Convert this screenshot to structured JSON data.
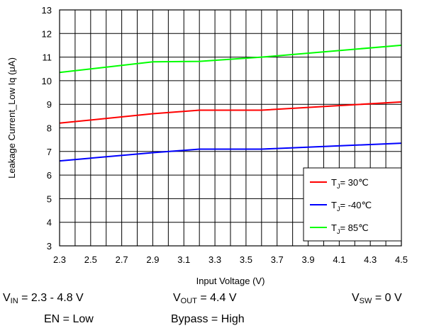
{
  "chart_data": {
    "type": "line",
    "xlabel": "Input Voltage (V)",
    "ylabel": "Leakage Current_Low Iq (μA)",
    "xlim": [
      2.3,
      4.5
    ],
    "ylim": [
      3,
      13
    ],
    "x_ticks": [
      "2.3",
      "2.5",
      "2.7",
      "2.9",
      "3.1",
      "3.3",
      "3.5",
      "3.7",
      "3.9",
      "4.1",
      "4.3",
      "4.5"
    ],
    "y_ticks": [
      "3",
      "4",
      "5",
      "6",
      "7",
      "8",
      "9",
      "10",
      "11",
      "12",
      "13"
    ],
    "grid": true,
    "legend_position": "bottom-right",
    "series": [
      {
        "name": "T_J = 30℃",
        "sub": "J",
        "label_prefix": "T",
        "label_suffix": "= 30℃",
        "color": "#ff0000",
        "x": [
          2.3,
          2.9,
          3.2,
          3.6,
          4.5
        ],
        "y": [
          8.2,
          8.6,
          8.75,
          8.75,
          9.1
        ]
      },
      {
        "name": "T_J = -40℃",
        "sub": "J",
        "label_prefix": "T",
        "label_suffix": "= -40℃",
        "color": "#0000ff",
        "x": [
          2.3,
          2.9,
          3.2,
          3.6,
          4.5
        ],
        "y": [
          6.6,
          6.95,
          7.1,
          7.1,
          7.35
        ]
      },
      {
        "name": "T_J = 85℃",
        "sub": "J",
        "label_prefix": "T",
        "label_suffix": "= 85℃",
        "color": "#00ff00",
        "x": [
          2.3,
          2.9,
          3.2,
          3.6,
          4.5
        ],
        "y": [
          10.35,
          10.8,
          10.82,
          11.0,
          11.5
        ]
      }
    ]
  },
  "conditions": {
    "vin": {
      "main": "V",
      "sub": "IN",
      "rest": " = 2.3 - 4.8 V"
    },
    "vout": {
      "main": "V",
      "sub": "OUT",
      "rest": " = 4.4 V"
    },
    "vsw": {
      "main": "V",
      "sub": "SW",
      "rest": " = 0 V"
    },
    "en": "EN = Low",
    "bypass": "Bypass = High"
  }
}
